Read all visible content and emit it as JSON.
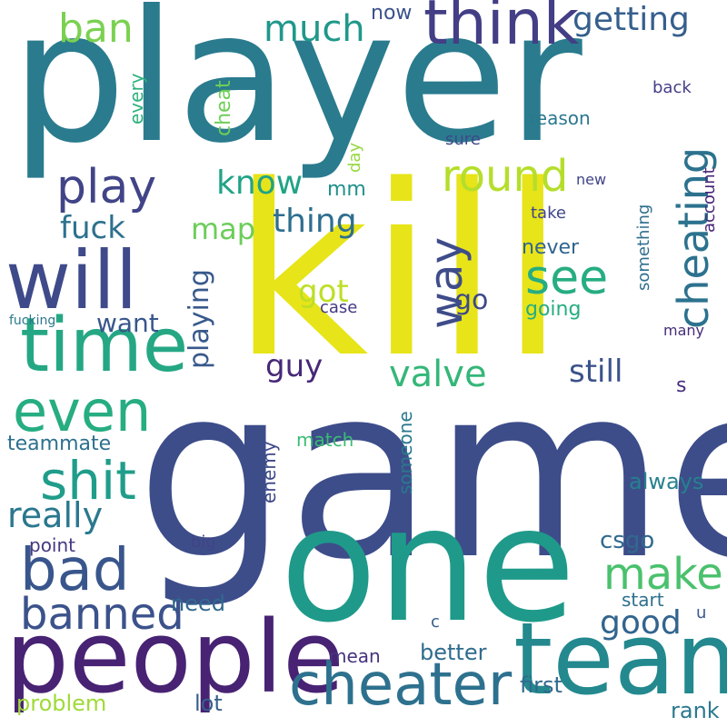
{
  "words": [
    {
      "text": "player",
      "color": "#2a7b8e"
    },
    {
      "text": "game",
      "color": "#3d4d8a"
    },
    {
      "text": "kill",
      "color": "#e7e419"
    },
    {
      "text": "one",
      "color": "#1f9a8a"
    },
    {
      "text": "people",
      "color": "#482273"
    },
    {
      "text": "team",
      "color": "#23898e"
    },
    {
      "text": "time",
      "color": "#25a784"
    },
    {
      "text": "will",
      "color": "#3e4a89"
    },
    {
      "text": "cheater",
      "color": "#2d718e"
    },
    {
      "text": "think",
      "color": "#433e85"
    },
    {
      "text": "bad",
      "color": "#39568c"
    },
    {
      "text": "even",
      "color": "#26ad81"
    },
    {
      "text": "shit",
      "color": "#1f9d8a"
    },
    {
      "text": "play",
      "color": "#414487"
    },
    {
      "text": "see",
      "color": "#26ad81"
    },
    {
      "text": "banned",
      "color": "#3b528b"
    },
    {
      "text": "round",
      "color": "#b5de2b"
    },
    {
      "text": "make",
      "color": "#4ac16d"
    },
    {
      "text": "way",
      "color": "#3e4c8a"
    },
    {
      "text": "cheating",
      "color": "#2c728e"
    },
    {
      "text": "valve",
      "color": "#35b779"
    },
    {
      "text": "getting",
      "color": "#355f8d"
    },
    {
      "text": "ban",
      "color": "#7ad151"
    },
    {
      "text": "much",
      "color": "#1f988b"
    },
    {
      "text": "really",
      "color": "#2a788e"
    },
    {
      "text": "good",
      "color": "#32648e"
    },
    {
      "text": "still",
      "color": "#3b528b"
    },
    {
      "text": "know",
      "color": "#20a386"
    },
    {
      "text": "thing",
      "color": "#2e6e8e"
    },
    {
      "text": "fuck",
      "color": "#2c718e"
    },
    {
      "text": "got",
      "color": "#bddf26"
    },
    {
      "text": "guy",
      "color": "#482878"
    },
    {
      "text": "map",
      "color": "#6ccd5a"
    },
    {
      "text": "playing",
      "color": "#38598c"
    },
    {
      "text": "go",
      "color": "#3e4989"
    },
    {
      "text": "want",
      "color": "#39568c"
    },
    {
      "text": "csgo",
      "color": "#31688e"
    },
    {
      "text": "teammate",
      "color": "#2d708e"
    },
    {
      "text": "problem",
      "color": "#a0da39"
    },
    {
      "text": "better",
      "color": "#2f6c8e"
    },
    {
      "text": "need",
      "color": "#31688e"
    },
    {
      "text": "lot",
      "color": "#355f8d"
    },
    {
      "text": "rank",
      "color": "#2a788e"
    },
    {
      "text": "first",
      "color": "#31688e"
    },
    {
      "text": "always",
      "color": "#26818e"
    },
    {
      "text": "cheat",
      "color": "#6ece58"
    },
    {
      "text": "mm",
      "color": "#21918c"
    },
    {
      "text": "going",
      "color": "#27ad81"
    },
    {
      "text": "never",
      "color": "#32648e"
    },
    {
      "text": "someone",
      "color": "#2a788e"
    },
    {
      "text": "now",
      "color": "#3b528b"
    },
    {
      "text": "every",
      "color": "#2db27d"
    },
    {
      "text": "s",
      "color": "#472d7b"
    },
    {
      "text": "mean",
      "color": "#46337f"
    },
    {
      "text": "reason",
      "color": "#2a788e"
    },
    {
      "text": "point",
      "color": "#453882"
    },
    {
      "text": "enemy",
      "color": "#3e4989"
    },
    {
      "text": "start",
      "color": "#2d708e"
    },
    {
      "text": "match",
      "color": "#3bbb75"
    },
    {
      "text": "account",
      "color": "#482677"
    },
    {
      "text": "back",
      "color": "#433e85"
    },
    {
      "text": "something",
      "color": "#2e6e8e"
    },
    {
      "text": "take",
      "color": "#404588"
    },
    {
      "text": "big",
      "color": "#414487"
    },
    {
      "text": "case",
      "color": "#443983"
    },
    {
      "text": "c",
      "color": "#365d8d"
    },
    {
      "text": "u",
      "color": "#38598c"
    },
    {
      "text": "sure",
      "color": "#3e4989"
    },
    {
      "text": "day",
      "color": "#95d840"
    },
    {
      "text": "many",
      "color": "#472c7a"
    },
    {
      "text": "new",
      "color": "#404588"
    },
    {
      "text": "fucking",
      "color": "#2a788e"
    }
  ]
}
